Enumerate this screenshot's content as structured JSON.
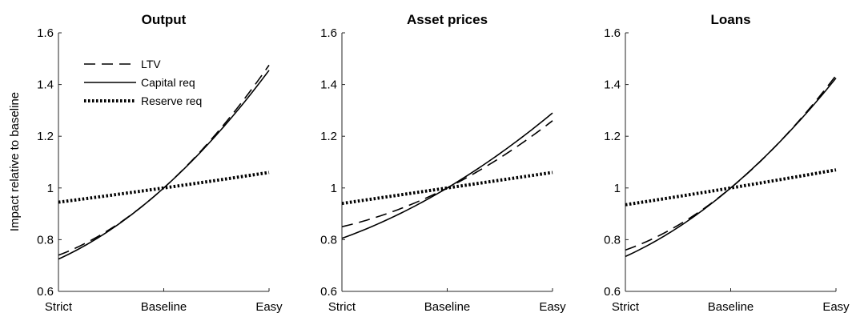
{
  "ylabel": "Impact relative to baseline",
  "legend": {
    "placement": "top-left of first panel",
    "entries": [
      {
        "label": "LTV",
        "style": "dashed"
      },
      {
        "label": "Capital req",
        "style": "solid"
      },
      {
        "label": "Reserve req",
        "style": "dotted"
      }
    ]
  },
  "chart_data": [
    {
      "type": "line",
      "title": "Output",
      "x": [
        "Strict",
        "Baseline",
        "Easy"
      ],
      "xticklabels": [
        "Strict",
        "Baseline",
        "Easy"
      ],
      "ylim": [
        0.6,
        1.6
      ],
      "yticks": [
        "0.6",
        "0.8",
        "1",
        "1.2",
        "1.4",
        "1.6"
      ],
      "grid": false,
      "series": [
        {
          "name": "LTV",
          "style": "dashed",
          "values": [
            0.74,
            1.0,
            1.475
          ]
        },
        {
          "name": "Capital req",
          "style": "solid",
          "values": [
            0.725,
            1.0,
            1.455
          ]
        },
        {
          "name": "Reserve req",
          "style": "dotted",
          "values": [
            0.945,
            1.0,
            1.06
          ]
        }
      ]
    },
    {
      "type": "line",
      "title": "Asset prices",
      "x": [
        "Strict",
        "Baseline",
        "Easy"
      ],
      "xticklabels": [
        "Strict",
        "Baseline",
        "Easy"
      ],
      "ylim": [
        0.6,
        1.6
      ],
      "yticks": [
        "0.6",
        "0.8",
        "1",
        "1.2",
        "1.4",
        "1.6"
      ],
      "grid": false,
      "series": [
        {
          "name": "LTV",
          "style": "dashed",
          "values": [
            0.85,
            1.0,
            1.26
          ]
        },
        {
          "name": "Capital req",
          "style": "solid",
          "values": [
            0.805,
            1.0,
            1.29
          ]
        },
        {
          "name": "Reserve req",
          "style": "dotted",
          "values": [
            0.94,
            1.0,
            1.06
          ]
        }
      ]
    },
    {
      "type": "line",
      "title": "Loans",
      "x": [
        "Strict",
        "Baseline",
        "Easy"
      ],
      "xticklabels": [
        "Strict",
        "Baseline",
        "Easy"
      ],
      "ylim": [
        0.6,
        1.6
      ],
      "yticks": [
        "0.6",
        "0.8",
        "1",
        "1.2",
        "1.4",
        "1.6"
      ],
      "grid": false,
      "series": [
        {
          "name": "LTV",
          "style": "dashed",
          "values": [
            0.76,
            1.0,
            1.435
          ]
        },
        {
          "name": "Capital req",
          "style": "solid",
          "values": [
            0.735,
            1.0,
            1.425
          ]
        },
        {
          "name": "Reserve req",
          "style": "dotted",
          "values": [
            0.935,
            1.0,
            1.07
          ]
        }
      ]
    }
  ]
}
